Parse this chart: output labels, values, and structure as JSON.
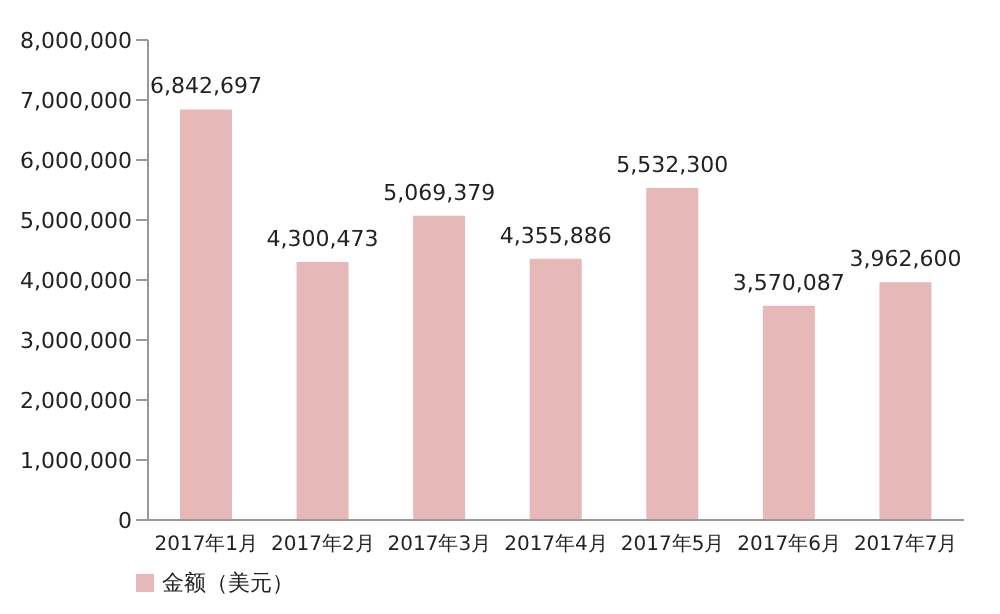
{
  "chart_data": {
    "type": "bar",
    "categories": [
      "2017年1月",
      "2017年2月",
      "2017年3月",
      "2017年4月",
      "2017年5月",
      "2017年6月",
      "2017年7月"
    ],
    "series": [
      {
        "name": "金额（美元）",
        "color": "#e6b8b7",
        "values": [
          6842697,
          4300473,
          5069379,
          4355886,
          5532300,
          3570087,
          3962600
        ],
        "value_labels": [
          "6,842,697",
          "4,300,473",
          "5,069,379",
          "4,355,886",
          "5,532,300",
          "3,570,087",
          "3,962,600"
        ]
      }
    ],
    "ylim": [
      0,
      8000000
    ],
    "yticks": [
      0,
      {
        "value": 1000000,
        "label": "1,000,000"
      },
      {
        "value": 2000000,
        "label": "2,000,000"
      },
      {
        "value": 3000000,
        "label": "3,000,000"
      },
      {
        "value": 4000000,
        "label": "4,000,000"
      },
      {
        "value": 5000000,
        "label": "5,000,000"
      },
      {
        "value": 6000000,
        "label": "6,000,000"
      },
      {
        "value": 7000000,
        "label": "7,000,000"
      },
      {
        "value": 8000000,
        "label": "8,000,000"
      }
    ],
    "grid": false,
    "legend": "bottom"
  }
}
